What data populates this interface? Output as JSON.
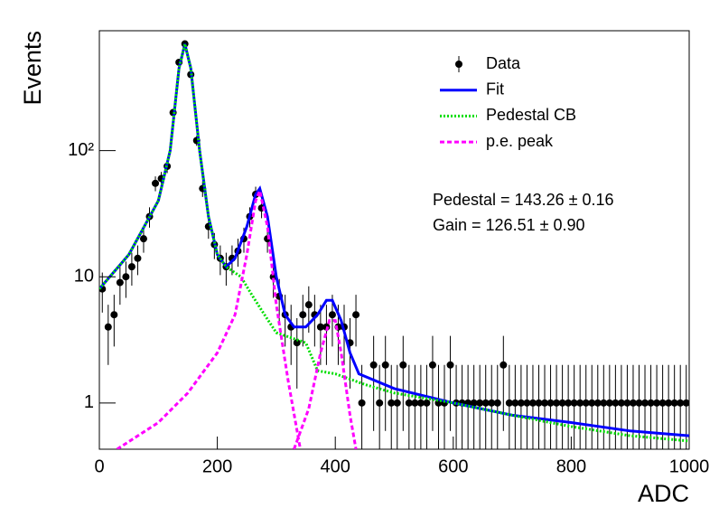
{
  "chart_data": {
    "type": "scatter",
    "x_label": "ADC",
    "y_label": "Events",
    "log_y": true,
    "xlim": [
      0,
      1000
    ],
    "ylim": [
      0.43,
      890
    ],
    "xticks": [
      0,
      200,
      400,
      600,
      800,
      1000
    ],
    "yticks": [
      1,
      10,
      {
        "value": 100,
        "label": "10²"
      }
    ],
    "legend": "upper right",
    "annotations": [
      "Pedestal = 143.26 ± 0.16",
      "Gain = 126.51 ± 0.90"
    ],
    "series": [
      {
        "name": "Data",
        "color": "#000000",
        "style": "points",
        "x": [
          5,
          15,
          25,
          35,
          45,
          55,
          65,
          75,
          85,
          95,
          105,
          115,
          125,
          135,
          145,
          155,
          165,
          175,
          185,
          195,
          205,
          215,
          225,
          235,
          245,
          255,
          265,
          275,
          285,
          295,
          305,
          315,
          325,
          335,
          345,
          355,
          365,
          375,
          385,
          395,
          405,
          415,
          425,
          435,
          445,
          455,
          465,
          475,
          485,
          495,
          505,
          515,
          525,
          535,
          545,
          555,
          565,
          575,
          585,
          595,
          605,
          615,
          625,
          635,
          645,
          655,
          665,
          675,
          685,
          695,
          705,
          715,
          725,
          735,
          745,
          755,
          765,
          775,
          785,
          795,
          805,
          815,
          825,
          835,
          845,
          855,
          865,
          875,
          885,
          895,
          905,
          915,
          925,
          935,
          945,
          955,
          965,
          975,
          985,
          995
        ],
        "values": [
          8,
          4,
          5,
          9,
          10,
          12,
          14,
          20,
          30,
          55,
          60,
          75,
          200,
          500,
          700,
          400,
          120,
          50,
          25,
          18,
          14,
          12,
          14,
          16,
          20,
          30,
          45,
          35,
          20,
          10,
          7,
          5,
          4,
          3,
          5,
          6,
          5,
          4,
          4,
          5,
          4,
          4,
          3,
          5,
          1,
          null,
          2,
          1,
          2,
          1,
          1,
          2,
          1,
          1,
          1,
          1,
          2,
          1,
          1,
          2,
          1,
          1,
          1,
          1,
          1,
          1,
          1,
          1,
          2,
          1,
          1,
          1,
          1,
          1,
          1,
          1,
          1,
          1,
          1,
          1,
          1,
          1,
          1,
          1,
          1,
          1,
          1,
          1,
          1,
          1,
          1,
          1,
          1,
          1,
          1,
          1,
          1,
          1,
          1,
          1
        ],
        "errors": [
          2.8,
          2,
          2.2,
          3,
          3.2,
          3.5,
          3.7,
          4.5,
          5.5,
          7.4,
          7.7,
          8.7,
          14,
          22,
          26,
          20,
          11,
          7.1,
          5,
          4.2,
          3.7,
          3.5,
          3.7,
          4,
          4.5,
          5.5,
          6.7,
          5.9,
          4.5,
          3.2,
          2.6,
          2.2,
          2,
          1.7,
          2.2,
          2.4,
          2.2,
          2,
          2,
          2.2,
          2,
          2,
          1.7,
          2.2,
          1,
          null,
          1.4,
          1,
          1.4,
          1,
          1,
          1.4,
          1,
          1,
          1,
          1,
          1.4,
          1,
          1,
          1.4,
          1,
          1,
          1,
          1,
          1,
          1,
          1,
          1,
          1.4,
          1,
          1,
          1,
          1,
          1,
          1,
          1,
          1,
          1,
          1,
          1,
          1,
          1,
          1,
          1,
          1,
          1,
          1,
          1,
          1,
          1,
          1,
          1,
          1,
          1,
          1,
          1,
          1,
          1,
          1,
          1
        ]
      },
      {
        "name": "Fit",
        "color": "#0000ff",
        "style": "solid",
        "x": [
          0,
          50,
          100,
          120,
          135,
          145,
          155,
          170,
          185,
          200,
          215,
          230,
          250,
          265,
          272,
          285,
          300,
          315,
          330,
          350,
          370,
          385,
          395,
          410,
          425,
          440,
          500,
          600,
          700,
          800,
          900,
          1000
        ],
        "values": [
          8,
          15,
          40,
          100,
          450,
          700,
          450,
          100,
          30,
          15,
          12,
          14,
          25,
          45,
          50,
          30,
          10,
          5,
          4,
          4,
          5,
          6.5,
          6.5,
          4.5,
          2.5,
          1.7,
          1.3,
          1.0,
          0.8,
          0.7,
          0.6,
          0.55
        ]
      },
      {
        "name": "Pedestal CB",
        "color": "#00dd00",
        "style": "dotted",
        "x": [
          0,
          50,
          100,
          120,
          135,
          145,
          155,
          170,
          185,
          200,
          215,
          240,
          260,
          280,
          300,
          350,
          370,
          400,
          450,
          500,
          600,
          700,
          800,
          900,
          1000
        ],
        "values": [
          8,
          15,
          40,
          100,
          450,
          700,
          450,
          100,
          30,
          15,
          12,
          10,
          7,
          5,
          3.6,
          3,
          1.8,
          1.7,
          1.4,
          1.2,
          1.0,
          0.8,
          0.65,
          0.55,
          0.5
        ]
      },
      {
        "name": "p.e. peak",
        "color": "#ff00ff",
        "style": "dashed",
        "x": [
          30,
          100,
          150,
          200,
          230,
          250,
          265,
          272,
          285,
          300,
          320,
          340,
          null,
          330,
          355,
          375,
          390,
          400,
          410,
          425,
          435
        ],
        "values": [
          0.43,
          0.7,
          1.2,
          2.5,
          5,
          15,
          40,
          48,
          25,
          6,
          1.5,
          0.45,
          null,
          0.43,
          0.9,
          2.5,
          4.5,
          4.5,
          2.5,
          0.8,
          0.43
        ]
      }
    ]
  }
}
